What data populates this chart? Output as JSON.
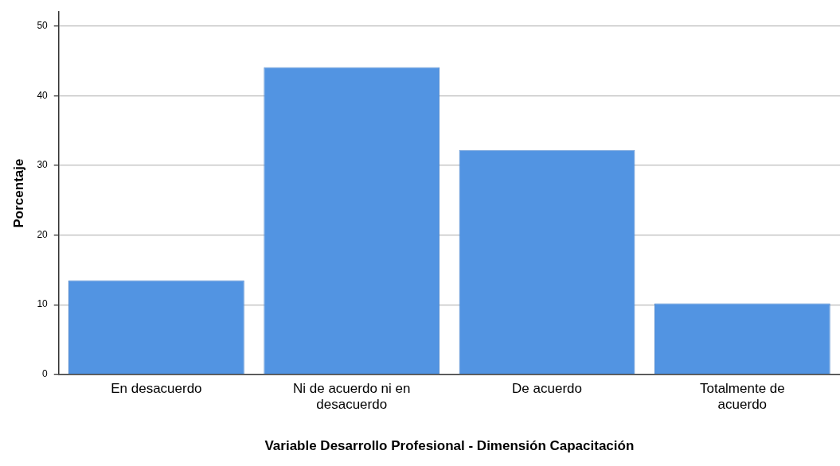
{
  "chart_data": {
    "type": "bar",
    "xlabel": "Variable Desarrollo Profesional - Dimensión Capacitación",
    "ylabel": "Porcentaje",
    "categories": [
      "En desacuerdo",
      "Ni de acuerdo ni en desacuerdo",
      "De acuerdo",
      "Totalmente de acuerdo"
    ],
    "values": [
      13.5,
      44.1,
      32.2,
      10.2
    ],
    "color": "#5294e2",
    "ylim": [
      0,
      52
    ],
    "yticks": [
      0,
      10,
      20,
      30,
      40,
      50
    ],
    "grid": "y",
    "legend": false
  }
}
